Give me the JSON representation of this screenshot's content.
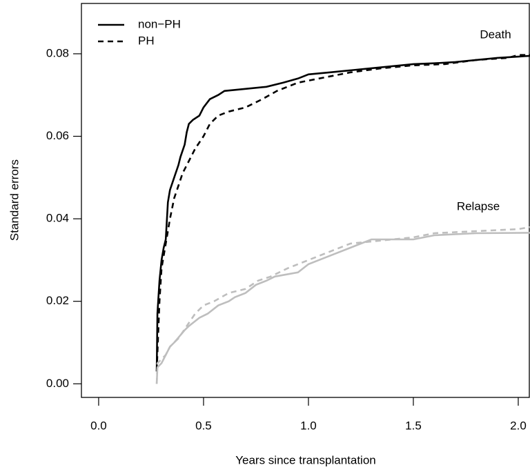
{
  "chart_data": {
    "type": "line",
    "xlabel": "Years since transplantation",
    "ylabel": "Standard errors",
    "xlim": [
      -0.082,
      2.056
    ],
    "ylim": [
      -0.0033,
      0.0922
    ],
    "xticks": [
      {
        "value": 0,
        "label": "0.0"
      },
      0.5,
      {
        "value": 1,
        "label": "1.0"
      },
      1.5,
      {
        "value": 2,
        "label": "2.0"
      }
    ],
    "yticks": [
      {
        "value": 0,
        "label": "0.00"
      },
      {
        "value": 0.02,
        "label": "0.02"
      },
      {
        "value": 0.04,
        "label": "0.04"
      },
      {
        "value": 0.06,
        "label": "0.06"
      },
      {
        "value": 0.08,
        "label": "0.08"
      }
    ],
    "legend_position": "upper left",
    "annotations": [
      {
        "text": "Death"
      },
      {
        "text": "Relapse"
      }
    ],
    "series": [
      {
        "name": "non−PH",
        "color": "#000000",
        "dash": "solid",
        "x": [
          0.277,
          0.28,
          0.29,
          0.3,
          0.31,
          0.32,
          0.33,
          0.34,
          0.36,
          0.38,
          0.39,
          0.41,
          0.42,
          0.43,
          0.45,
          0.48,
          0.5,
          0.53,
          0.57,
          0.6,
          0.7,
          0.8,
          0.88,
          0.95,
          1.0,
          1.1,
          1.2,
          1.3,
          1.4,
          1.5,
          1.6,
          1.7,
          1.8,
          1.9,
          2.0,
          2.056
        ],
        "values": [
          0.003,
          0.017,
          0.025,
          0.03,
          0.033,
          0.035,
          0.044,
          0.047,
          0.05,
          0.053,
          0.055,
          0.058,
          0.061,
          0.063,
          0.064,
          0.065,
          0.067,
          0.069,
          0.07,
          0.071,
          0.0715,
          0.072,
          0.073,
          0.074,
          0.075,
          0.0755,
          0.076,
          0.0765,
          0.077,
          0.0775,
          0.0777,
          0.078,
          0.0785,
          0.079,
          0.0793,
          0.0795
        ]
      },
      {
        "name": "PH",
        "color": "#000000",
        "dash": "dashed",
        "x": [
          0.277,
          0.29,
          0.3,
          0.32,
          0.34,
          0.36,
          0.38,
          0.4,
          0.43,
          0.46,
          0.5,
          0.53,
          0.57,
          0.62,
          0.7,
          0.78,
          0.85,
          0.95,
          1.05,
          1.2,
          1.35,
          1.5,
          1.65,
          1.8,
          1.95,
          2.0,
          2.056
        ],
        "values": [
          0.003,
          0.02,
          0.028,
          0.034,
          0.04,
          0.045,
          0.048,
          0.051,
          0.054,
          0.057,
          0.06,
          0.063,
          0.065,
          0.066,
          0.067,
          0.069,
          0.071,
          0.073,
          0.074,
          0.0755,
          0.0765,
          0.0772,
          0.0775,
          0.0785,
          0.079,
          0.0797,
          0.0797
        ]
      },
      {
        "name": "non−PH",
        "color": "#bebebe",
        "dash": "solid",
        "x": [
          0.277,
          0.28,
          0.3,
          0.32,
          0.34,
          0.36,
          0.41,
          0.43,
          0.48,
          0.52,
          0.57,
          0.62,
          0.65,
          0.7,
          0.75,
          0.8,
          0.84,
          0.95,
          1.0,
          1.1,
          1.2,
          1.3,
          1.5,
          1.6,
          1.8,
          2.056
        ],
        "values": [
          0.0,
          0.004,
          0.005,
          0.007,
          0.009,
          0.01,
          0.013,
          0.014,
          0.016,
          0.017,
          0.019,
          0.02,
          0.021,
          0.022,
          0.024,
          0.025,
          0.026,
          0.027,
          0.029,
          0.031,
          0.033,
          0.035,
          0.035,
          0.036,
          0.0365,
          0.0366
        ]
      },
      {
        "name": "PH",
        "color": "#bebebe",
        "dash": "dashed",
        "x": [
          0.277,
          0.28,
          0.32,
          0.34,
          0.38,
          0.42,
          0.46,
          0.5,
          0.55,
          0.62,
          0.7,
          0.76,
          0.82,
          0.9,
          1.0,
          1.1,
          1.2,
          1.3,
          1.5,
          1.6,
          1.8,
          2.0,
          2.056
        ],
        "values": [
          0.0,
          0.005,
          0.007,
          0.009,
          0.011,
          0.014,
          0.017,
          0.019,
          0.02,
          0.022,
          0.023,
          0.025,
          0.026,
          0.028,
          0.03,
          0.032,
          0.034,
          0.0345,
          0.0355,
          0.0365,
          0.037,
          0.0375,
          0.038
        ]
      }
    ]
  }
}
